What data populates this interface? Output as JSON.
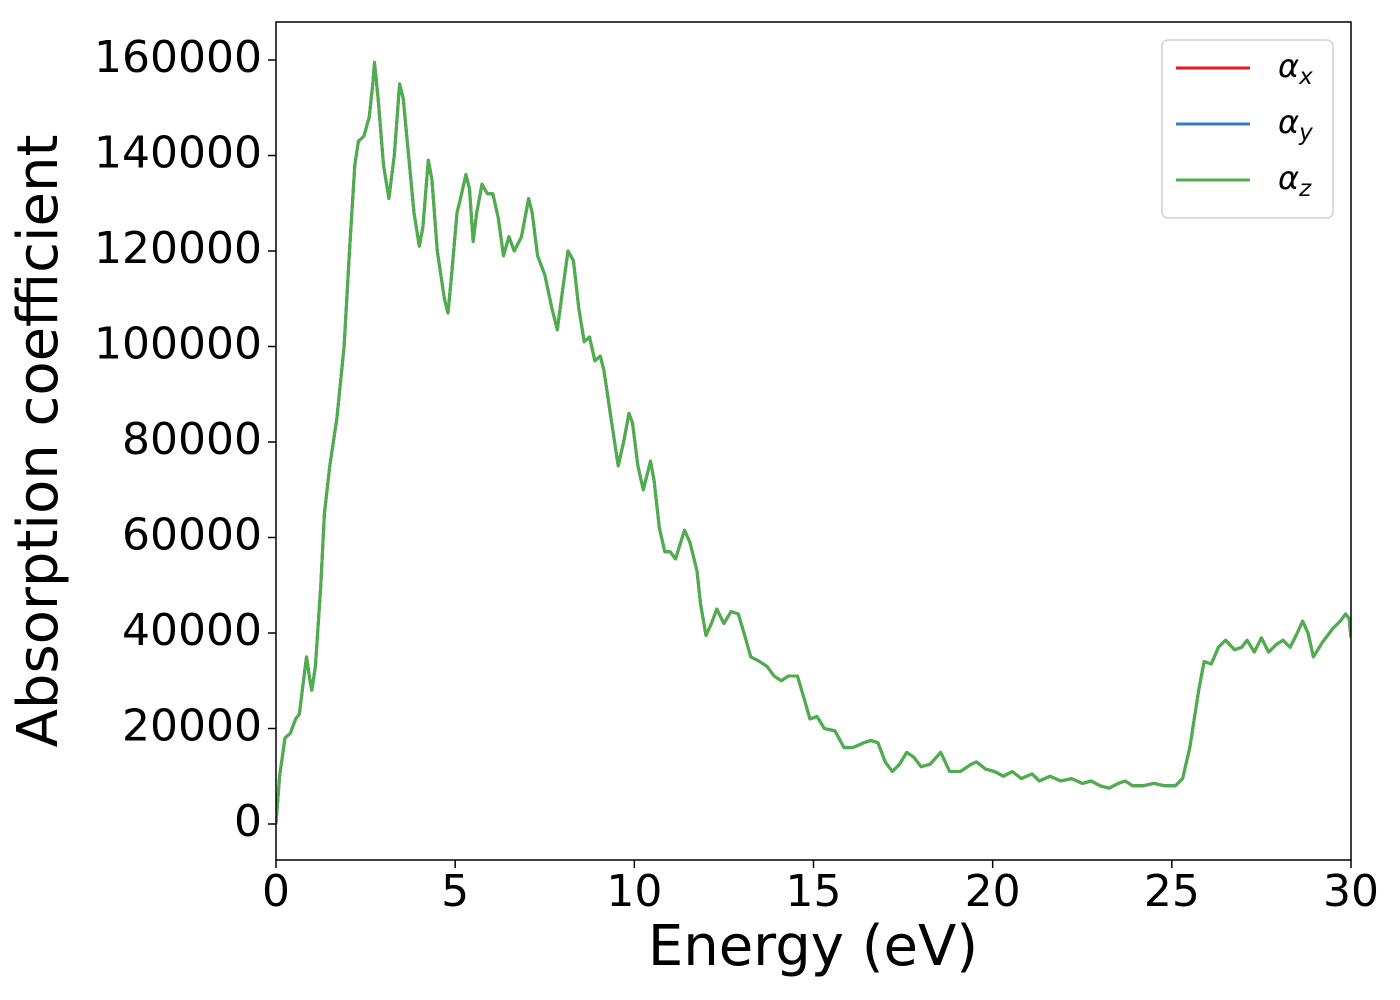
{
  "chart_data": {
    "type": "line",
    "xlabel": "Energy (eV)",
    "ylabel": "Absorption coefficient",
    "xlim": [
      0,
      30
    ],
    "xticks": [
      0,
      5,
      10,
      15,
      20,
      25,
      30
    ],
    "ylim": [
      -7540,
      167960
    ],
    "yticks": [
      0,
      20000,
      40000,
      60000,
      80000,
      100000,
      120000,
      140000,
      160000
    ],
    "legend": "upper right",
    "x": [
      0,
      0.1,
      0.25,
      0.4,
      0.55,
      0.65,
      0.75,
      0.85,
      0.95,
      1.0,
      1.1,
      1.25,
      1.35,
      1.5,
      1.7,
      1.9,
      2.05,
      2.2,
      2.3,
      2.45,
      2.6,
      2.7,
      2.75,
      2.85,
      3.0,
      3.15,
      3.3,
      3.45,
      3.55,
      3.7,
      3.85,
      4.0,
      4.1,
      4.25,
      4.35,
      4.5,
      4.7,
      4.8,
      4.9,
      5.05,
      5.15,
      5.3,
      5.4,
      5.5,
      5.6,
      5.75,
      5.9,
      6.05,
      6.2,
      6.35,
      6.5,
      6.65,
      6.85,
      7.05,
      7.15,
      7.3,
      7.5,
      7.7,
      7.85,
      8.0,
      8.15,
      8.3,
      8.45,
      8.6,
      8.75,
      8.9,
      9.05,
      9.15,
      9.35,
      9.55,
      9.7,
      9.85,
      9.95,
      10.1,
      10.25,
      10.45,
      10.55,
      10.7,
      10.85,
      11.0,
      11.15,
      11.4,
      11.55,
      11.75,
      11.85,
      12.0,
      12.15,
      12.3,
      12.5,
      12.7,
      12.9,
      13.1,
      13.25,
      13.5,
      13.7,
      13.9,
      14.1,
      14.3,
      14.55,
      14.75,
      14.9,
      15.1,
      15.3,
      15.6,
      15.85,
      16.1,
      16.4,
      16.6,
      16.8,
      17.0,
      17.2,
      17.4,
      17.6,
      17.8,
      18.0,
      18.25,
      18.55,
      18.8,
      19.1,
      19.4,
      19.55,
      19.8,
      20.05,
      20.3,
      20.55,
      20.8,
      21.1,
      21.3,
      21.6,
      21.9,
      22.2,
      22.5,
      22.75,
      23.0,
      23.25,
      23.5,
      23.7,
      23.9,
      24.2,
      24.5,
      24.8,
      25.1,
      25.3,
      25.5,
      25.75,
      25.9,
      26.1,
      26.3,
      26.5,
      26.75,
      26.95,
      27.1,
      27.3,
      27.5,
      27.7,
      27.9,
      28.1,
      28.3,
      28.5,
      28.65,
      28.8,
      28.95,
      29.2,
      29.5,
      29.7,
      29.85,
      29.95,
      30
    ],
    "series": [
      {
        "name": "αx",
        "color": "#e41a1c",
        "values": [
          0,
          10000,
          18000,
          19000,
          22000,
          23000,
          29000,
          35000,
          30000,
          28000,
          33000,
          50000,
          65000,
          75000,
          85000,
          100000,
          120000,
          138000,
          143000,
          144000,
          148000,
          155000,
          159500,
          152000,
          138000,
          131000,
          140000,
          155000,
          152000,
          140000,
          128000,
          121000,
          125000,
          139000,
          135000,
          120000,
          110000,
          107000,
          115000,
          128000,
          131000,
          136000,
          133000,
          122000,
          128000,
          134000,
          132000,
          132000,
          127000,
          119000,
          123000,
          120000,
          123000,
          131000,
          128000,
          119000,
          115000,
          108000,
          103500,
          112000,
          120000,
          118000,
          108000,
          101000,
          102000,
          97000,
          98000,
          95000,
          85000,
          75000,
          80000,
          86000,
          84000,
          75000,
          70000,
          76000,
          72000,
          62000,
          57000,
          57000,
          55500,
          61500,
          59000,
          53000,
          46000,
          39500,
          42000,
          45000,
          42000,
          44500,
          44000,
          39000,
          35000,
          34000,
          33000,
          31000,
          30000,
          31000,
          31000,
          26000,
          22000,
          22500,
          20000,
          19500,
          16000,
          16000,
          17000,
          17500,
          17000,
          13000,
          11000,
          12500,
          15000,
          14000,
          12000,
          12500,
          15000,
          11000,
          11000,
          12500,
          13000,
          11500,
          11000,
          10000,
          11000,
          9500,
          10500,
          9000,
          10000,
          9000,
          9500,
          8500,
          9000,
          8000,
          7500,
          8500,
          9000,
          8000,
          8000,
          8500,
          8000,
          8000,
          9500,
          16000,
          28000,
          34000,
          33500,
          37000,
          38500,
          36500,
          37000,
          38500,
          36000,
          39000,
          36000,
          37500,
          38500,
          37000,
          40000,
          42500,
          40000,
          35000,
          38000,
          41000,
          42500,
          44000,
          43000,
          39000
        ]
      },
      {
        "name": "αy",
        "color": "#377eb8",
        "values": [
          0,
          10000,
          18000,
          19000,
          22000,
          23000,
          29000,
          35000,
          30000,
          28000,
          33000,
          50000,
          65000,
          75000,
          85000,
          100000,
          120000,
          138000,
          143000,
          144000,
          148000,
          155000,
          159500,
          152000,
          138000,
          131000,
          140000,
          155000,
          152000,
          140000,
          128000,
          121000,
          125000,
          139000,
          135000,
          120000,
          110000,
          107000,
          115000,
          128000,
          131000,
          136000,
          133000,
          122000,
          128000,
          134000,
          132000,
          132000,
          127000,
          119000,
          123000,
          120000,
          123000,
          131000,
          128000,
          119000,
          115000,
          108000,
          103500,
          112000,
          120000,
          118000,
          108000,
          101000,
          102000,
          97000,
          98000,
          95000,
          85000,
          75000,
          80000,
          86000,
          84000,
          75000,
          70000,
          76000,
          72000,
          62000,
          57000,
          57000,
          55500,
          61500,
          59000,
          53000,
          46000,
          39500,
          42000,
          45000,
          42000,
          44500,
          44000,
          39000,
          35000,
          34000,
          33000,
          31000,
          30000,
          31000,
          31000,
          26000,
          22000,
          22500,
          20000,
          19500,
          16000,
          16000,
          17000,
          17500,
          17000,
          13000,
          11000,
          12500,
          15000,
          14000,
          12000,
          12500,
          15000,
          11000,
          11000,
          12500,
          13000,
          11500,
          11000,
          10000,
          11000,
          9500,
          10500,
          9000,
          10000,
          9000,
          9500,
          8500,
          9000,
          8000,
          7500,
          8500,
          9000,
          8000,
          8000,
          8500,
          8000,
          8000,
          9500,
          16000,
          28000,
          34000,
          33500,
          37000,
          38500,
          36500,
          37000,
          38500,
          36000,
          39000,
          36000,
          37500,
          38500,
          37000,
          40000,
          42500,
          40000,
          35000,
          38000,
          41000,
          42500,
          44000,
          43000,
          39000
        ]
      },
      {
        "name": "αz",
        "color": "#4daf4a",
        "values": [
          0,
          10000,
          18000,
          19000,
          22000,
          23000,
          29000,
          35000,
          30000,
          28000,
          33000,
          50000,
          65000,
          75000,
          85000,
          100000,
          120000,
          138000,
          143000,
          144000,
          148000,
          155000,
          159500,
          152000,
          138000,
          131000,
          140000,
          155000,
          152000,
          140000,
          128000,
          121000,
          125000,
          139000,
          135000,
          120000,
          110000,
          107000,
          115000,
          128000,
          131000,
          136000,
          133000,
          122000,
          128000,
          134000,
          132000,
          132000,
          127000,
          119000,
          123000,
          120000,
          123000,
          131000,
          128000,
          119000,
          115000,
          108000,
          103500,
          112000,
          120000,
          118000,
          108000,
          101000,
          102000,
          97000,
          98000,
          95000,
          85000,
          75000,
          80000,
          86000,
          84000,
          75000,
          70000,
          76000,
          72000,
          62000,
          57000,
          57000,
          55500,
          61500,
          59000,
          53000,
          46000,
          39500,
          42000,
          45000,
          42000,
          44500,
          44000,
          39000,
          35000,
          34000,
          33000,
          31000,
          30000,
          31000,
          31000,
          26000,
          22000,
          22500,
          20000,
          19500,
          16000,
          16000,
          17000,
          17500,
          17000,
          13000,
          11000,
          12500,
          15000,
          14000,
          12000,
          12500,
          15000,
          11000,
          11000,
          12500,
          13000,
          11500,
          11000,
          10000,
          11000,
          9500,
          10500,
          9000,
          10000,
          9000,
          9500,
          8500,
          9000,
          8000,
          7500,
          8500,
          9000,
          8000,
          8000,
          8500,
          8000,
          8000,
          9500,
          16000,
          28000,
          34000,
          33500,
          37000,
          38500,
          36500,
          37000,
          38500,
          36000,
          39000,
          36000,
          37500,
          38500,
          37000,
          40000,
          42500,
          40000,
          35000,
          38000,
          41000,
          42500,
          44000,
          43000,
          39000
        ]
      }
    ]
  }
}
